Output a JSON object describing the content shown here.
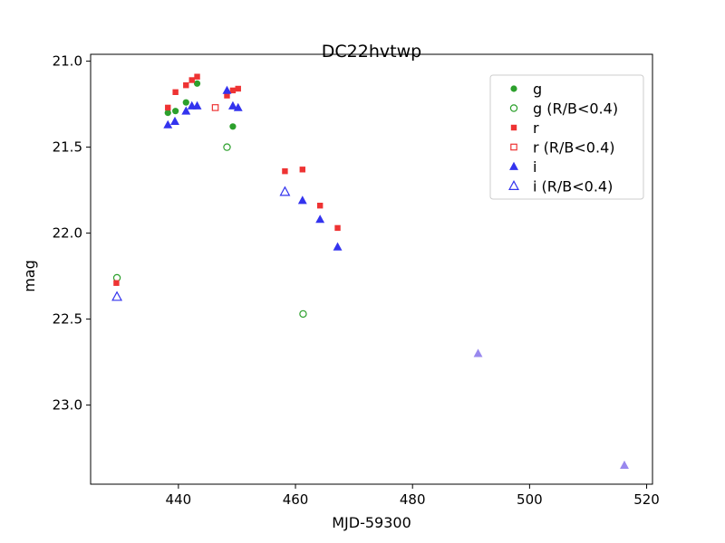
{
  "chart_data": {
    "type": "scatter",
    "title": "DC22hvtwp",
    "xlabel": "MJD-59300",
    "ylabel": "mag",
    "xlim": [
      425,
      521
    ],
    "ylim": [
      23.46,
      20.96
    ],
    "y_inverted": true,
    "x_ticks": [
      440,
      460,
      480,
      500,
      520
    ],
    "y_ticks": [
      21.0,
      21.5,
      22.0,
      22.5,
      23.0
    ],
    "x_tick_labels": [
      "440",
      "460",
      "480",
      "500",
      "520"
    ],
    "y_tick_labels": [
      "21.0",
      "21.5",
      "22.0",
      "22.5",
      "23.0"
    ],
    "grid": false,
    "legend_placement": "top-right",
    "series": [
      {
        "name": "g",
        "marker": "circle",
        "filled": true,
        "color": "#2ca02c",
        "points": [
          [
            438.2,
            21.3
          ],
          [
            439.5,
            21.29
          ],
          [
            441.3,
            21.24
          ],
          [
            443.2,
            21.13
          ],
          [
            449.3,
            21.38
          ]
        ]
      },
      {
        "name": "g (R/B<0.4)",
        "marker": "circle",
        "filled": false,
        "color": "#2ca02c",
        "points": [
          [
            429.5,
            22.26
          ],
          [
            448.3,
            21.5
          ],
          [
            461.3,
            22.47
          ]
        ]
      },
      {
        "name": "r",
        "marker": "square",
        "filled": true,
        "color": "#ee3333",
        "points": [
          [
            429.4,
            22.29
          ],
          [
            438.2,
            21.27
          ],
          [
            439.5,
            21.18
          ],
          [
            441.3,
            21.14
          ],
          [
            442.3,
            21.11
          ],
          [
            443.2,
            21.09
          ],
          [
            448.3,
            21.2
          ],
          [
            449.3,
            21.17
          ],
          [
            450.2,
            21.16
          ],
          [
            458.2,
            21.64
          ],
          [
            461.2,
            21.63
          ],
          [
            464.2,
            21.84
          ],
          [
            467.2,
            21.97
          ]
        ]
      },
      {
        "name": "r (R/B<0.4)",
        "marker": "square",
        "filled": false,
        "color": "#ee3333",
        "points": [
          [
            446.3,
            21.27
          ]
        ]
      },
      {
        "name": "i",
        "marker": "triangle",
        "filled": true,
        "color": "#3333ee",
        "points": [
          [
            438.2,
            21.37
          ],
          [
            439.4,
            21.35
          ],
          [
            441.3,
            21.29
          ],
          [
            442.3,
            21.26
          ],
          [
            443.2,
            21.26
          ],
          [
            448.3,
            21.17
          ],
          [
            449.3,
            21.26
          ],
          [
            450.2,
            21.27
          ],
          [
            461.2,
            21.81
          ],
          [
            464.2,
            21.92
          ],
          [
            467.2,
            22.08
          ]
        ]
      },
      {
        "name": "i (R/B<0.4)",
        "marker": "triangle",
        "filled": false,
        "color": "#3333ee",
        "points": [
          [
            429.5,
            22.37
          ],
          [
            458.2,
            21.76
          ]
        ]
      },
      {
        "name": "",
        "marker": "triangle",
        "filled": true,
        "color": "#9988ee",
        "points": [
          [
            491.2,
            22.7
          ],
          [
            516.2,
            23.35
          ]
        ]
      }
    ]
  }
}
